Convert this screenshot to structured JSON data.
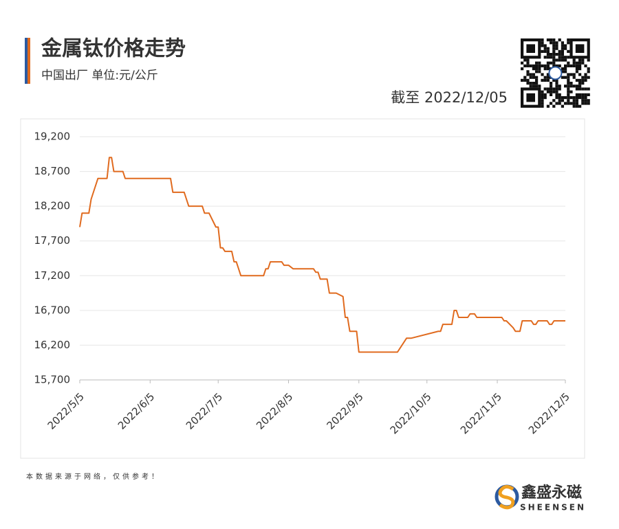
{
  "header": {
    "title": "金属钛价格走势",
    "subtitle": "中国出厂  单位:元/公斤",
    "as_of": "截至 2022/12/05"
  },
  "chart_data": {
    "type": "line",
    "color": "#e06a1e",
    "grid": true,
    "x": [
      "2022/5/5",
      "2022/5/6",
      "2022/5/9",
      "2022/5/10",
      "2022/5/13",
      "2022/5/17",
      "2022/5/18",
      "2022/5/19",
      "2022/5/20",
      "2022/5/24",
      "2022/5/25",
      "2022/6/14",
      "2022/6/15",
      "2022/6/20",
      "2022/6/22",
      "2022/6/28",
      "2022/6/29",
      "2022/7/1",
      "2022/7/4",
      "2022/7/5",
      "2022/7/6",
      "2022/7/7",
      "2022/7/8",
      "2022/7/11",
      "2022/7/12",
      "2022/7/13",
      "2022/7/15",
      "2022/7/25",
      "2022/7/26",
      "2022/7/27",
      "2022/7/28",
      "2022/8/2",
      "2022/8/3",
      "2022/8/5",
      "2022/8/7",
      "2022/8/16",
      "2022/8/17",
      "2022/8/18",
      "2022/8/19",
      "2022/8/22",
      "2022/8/23",
      "2022/8/26",
      "2022/8/29",
      "2022/8/30",
      "2022/8/31",
      "2022/9/1",
      "2022/9/4",
      "2022/9/5",
      "2022/9/22",
      "2022/9/26",
      "2022/9/28",
      "2022/10/10",
      "2022/10/11",
      "2022/10/12",
      "2022/10/16",
      "2022/10/17",
      "2022/10/18",
      "2022/10/19",
      "2022/10/23",
      "2022/10/24",
      "2022/10/26",
      "2022/10/27",
      "2022/11/7",
      "2022/11/8",
      "2022/11/9",
      "2022/11/12",
      "2022/11/13",
      "2022/11/15",
      "2022/11/16",
      "2022/11/20",
      "2022/11/21",
      "2022/11/22",
      "2022/11/23",
      "2022/11/27",
      "2022/11/28",
      "2022/11/29",
      "2022/11/30",
      "2022/12/5"
    ],
    "values": [
      17900,
      18100,
      18100,
      18300,
      18600,
      18600,
      18900,
      18900,
      18700,
      18700,
      18600,
      18600,
      18400,
      18400,
      18200,
      18200,
      18100,
      18100,
      17900,
      17900,
      17600,
      17600,
      17550,
      17550,
      17400,
      17400,
      17200,
      17200,
      17300,
      17300,
      17400,
      17400,
      17350,
      17350,
      17300,
      17300,
      17250,
      17250,
      17150,
      17150,
      16950,
      16950,
      16900,
      16600,
      16600,
      16400,
      16400,
      16100,
      16100,
      16300,
      16300,
      16400,
      16400,
      16500,
      16500,
      16700,
      16700,
      16600,
      16600,
      16650,
      16650,
      16600,
      16600,
      16550,
      16550,
      16450,
      16400,
      16400,
      16550,
      16550,
      16500,
      16500,
      16550,
      16550,
      16500,
      16500,
      16550,
      16550
    ],
    "xlim": [
      "2022/5/5",
      "2022/12/5"
    ],
    "xticks": [
      "2022/5/5",
      "2022/6/5",
      "2022/7/5",
      "2022/8/5",
      "2022/9/5",
      "2022/10/5",
      "2022/11/5",
      "2022/12/5"
    ],
    "ylim": [
      15700,
      19200
    ],
    "yticks": [
      {
        "value": 15700,
        "label": "15,700"
      },
      {
        "value": 16200,
        "label": "16,200"
      },
      {
        "value": 16700,
        "label": "16,700"
      },
      {
        "value": 17200,
        "label": "17,200"
      },
      {
        "value": 17700,
        "label": "17,700"
      },
      {
        "value": 18200,
        "label": "18,200"
      },
      {
        "value": 18700,
        "label": "18,700"
      },
      {
        "value": 19200,
        "label": "19,200"
      }
    ]
  },
  "footer": {
    "note": "本数据来源于网络，仅供参考！",
    "brand_cn": "鑫盛永磁",
    "brand_en": "SHEENSEN"
  }
}
